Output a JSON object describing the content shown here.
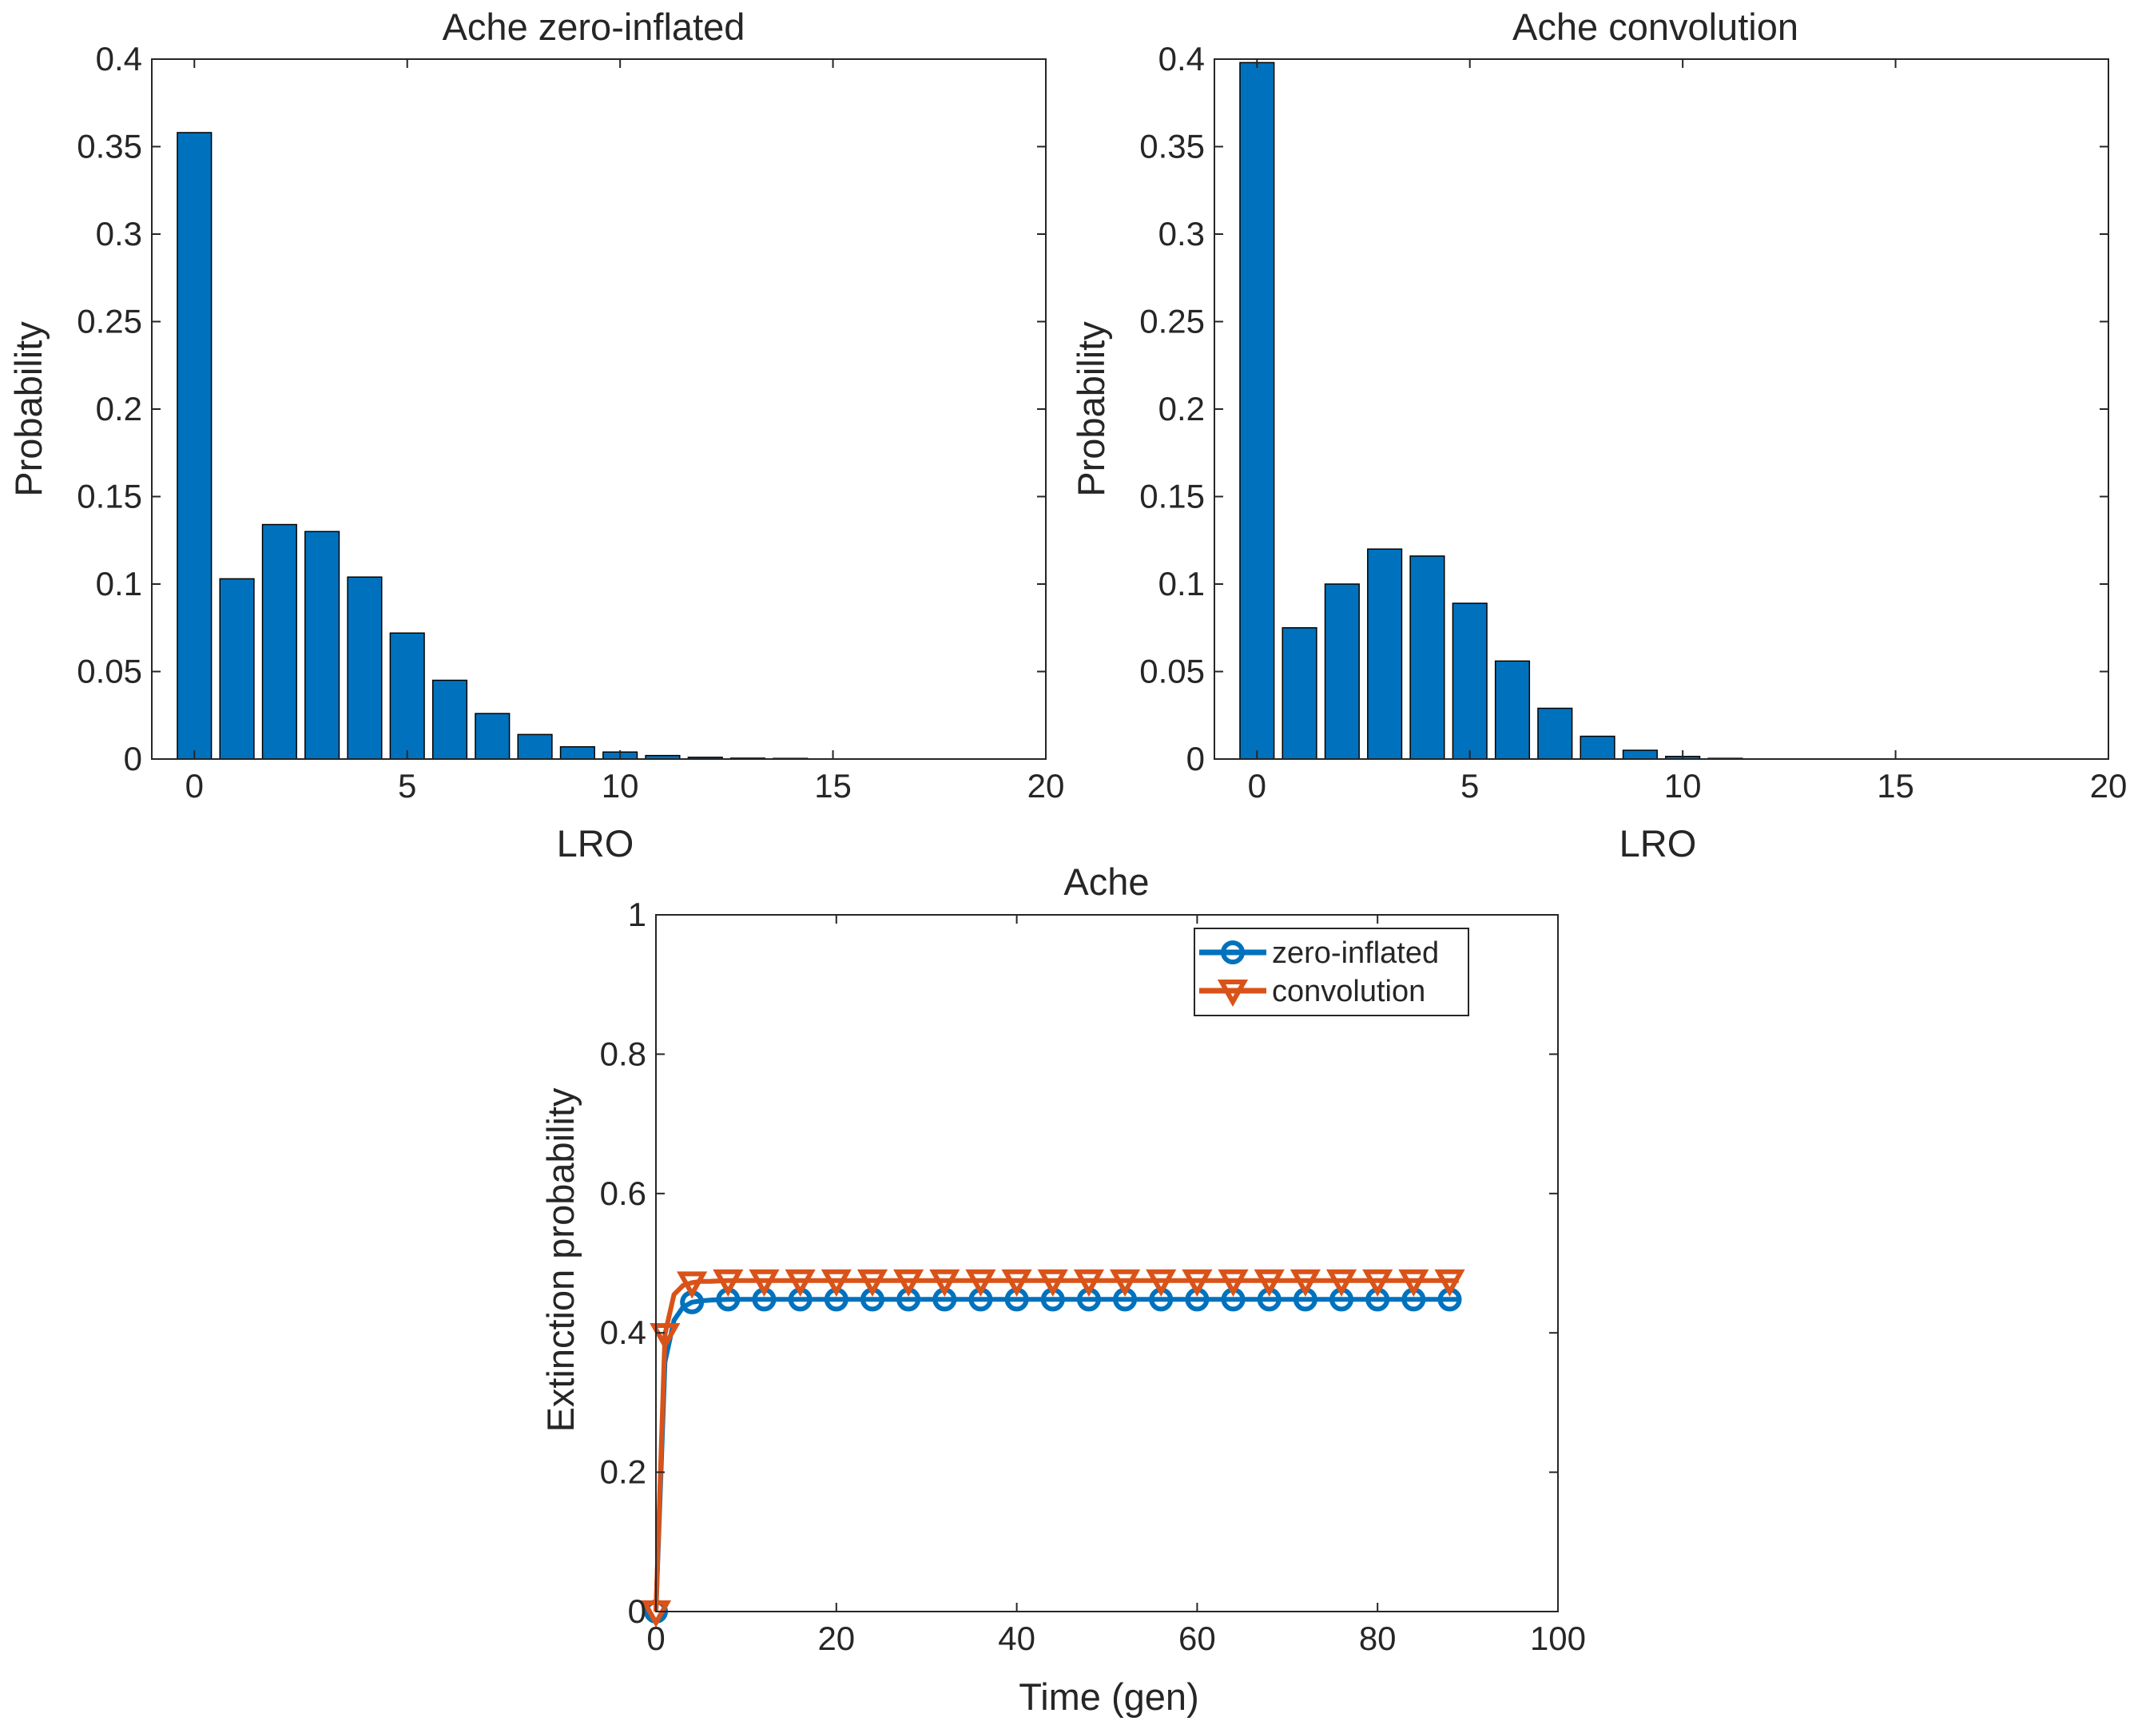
{
  "chart_data": [
    {
      "type": "bar",
      "title": "Ache zero-inflated",
      "xlabel": "LRO",
      "ylabel": "Probability",
      "xlim": [
        -1,
        20
      ],
      "ylim": [
        0,
        0.4
      ],
      "xticks": [
        0,
        5,
        10,
        15,
        20
      ],
      "xtick_labels": [
        "0",
        "5",
        "10",
        "15",
        "20"
      ],
      "yticks": [
        0,
        0.05,
        0.1,
        0.15,
        0.2,
        0.25,
        0.3,
        0.35,
        0.4
      ],
      "ytick_labels": [
        "0",
        "0.05",
        "0.1",
        "0.15",
        "0.2",
        "0.25",
        "0.3",
        "0.35",
        "0.4"
      ],
      "color": "#0072BD",
      "x": [
        0,
        1,
        2,
        3,
        4,
        5,
        6,
        7,
        8,
        9,
        10,
        11,
        12,
        13,
        14
      ],
      "values": [
        0.358,
        0.103,
        0.134,
        0.13,
        0.104,
        0.072,
        0.045,
        0.026,
        0.014,
        0.007,
        0.004,
        0.002,
        0.001,
        0.0005,
        0.0003
      ]
    },
    {
      "type": "bar",
      "title": "Ache convolution",
      "xlabel": "LRO",
      "ylabel": "Probability",
      "xlim": [
        -1,
        20
      ],
      "ylim": [
        0,
        0.4
      ],
      "xticks": [
        0,
        5,
        10,
        15,
        20
      ],
      "xtick_labels": [
        "0",
        "5",
        "10",
        "15",
        "20"
      ],
      "yticks": [
        0,
        0.05,
        0.1,
        0.15,
        0.2,
        0.25,
        0.3,
        0.35,
        0.4
      ],
      "ytick_labels": [
        "0",
        "0.05",
        "0.1",
        "0.15",
        "0.2",
        "0.25",
        "0.3",
        "0.35",
        "0.4"
      ],
      "color": "#0072BD",
      "x": [
        0,
        1,
        2,
        3,
        4,
        5,
        6,
        7,
        8,
        9,
        10,
        11
      ],
      "values": [
        0.398,
        0.075,
        0.1,
        0.12,
        0.116,
        0.089,
        0.056,
        0.029,
        0.013,
        0.005,
        0.0015,
        0.0004
      ]
    },
    {
      "type": "line",
      "title": "Ache",
      "xlabel": "Time (gen)",
      "ylabel": "Extinction probability",
      "xlim": [
        0,
        100
      ],
      "ylim": [
        0,
        1
      ],
      "xticks": [
        0,
        20,
        40,
        60,
        80,
        100
      ],
      "xtick_labels": [
        "0",
        "20",
        "40",
        "60",
        "80",
        "100"
      ],
      "yticks": [
        0,
        0.2,
        0.4,
        0.6,
        0.8,
        1
      ],
      "ytick_labels": [
        "0",
        "0.2",
        "0.4",
        "0.6",
        "0.8",
        "1"
      ],
      "legend_position": "top-right",
      "series": [
        {
          "name": "zero-inflated",
          "color": "#0072BD",
          "marker": "circle",
          "curve_x": [
            0,
            1,
            2,
            3,
            4,
            5,
            6,
            8,
            89
          ],
          "curve_y": [
            0,
            0.358,
            0.418,
            0.437,
            0.444,
            0.446,
            0.447,
            0.448,
            0.448
          ],
          "marker_x": [
            0,
            4,
            8,
            12,
            16,
            20,
            24,
            28,
            32,
            36,
            40,
            44,
            48,
            52,
            56,
            60,
            64,
            68,
            72,
            76,
            80,
            84,
            88
          ],
          "marker_y": [
            0,
            0.444,
            0.448,
            0.448,
            0.448,
            0.448,
            0.448,
            0.448,
            0.448,
            0.448,
            0.448,
            0.448,
            0.448,
            0.448,
            0.448,
            0.448,
            0.448,
            0.448,
            0.448,
            0.448,
            0.448,
            0.448,
            0.448
          ]
        },
        {
          "name": "convolution",
          "color": "#D95319",
          "marker": "triangle-down",
          "curve_x": [
            0,
            1,
            2,
            3,
            4,
            5,
            6,
            8,
            89
          ],
          "curve_y": [
            0,
            0.398,
            0.455,
            0.468,
            0.472,
            0.474,
            0.474,
            0.475,
            0.475
          ],
          "marker_x": [
            0,
            1,
            4,
            8,
            12,
            16,
            20,
            24,
            28,
            32,
            36,
            40,
            44,
            48,
            52,
            56,
            60,
            64,
            68,
            72,
            76,
            80,
            84,
            88
          ],
          "marker_y": [
            0,
            0.398,
            0.472,
            0.475,
            0.475,
            0.475,
            0.475,
            0.475,
            0.475,
            0.475,
            0.475,
            0.475,
            0.475,
            0.475,
            0.475,
            0.475,
            0.475,
            0.475,
            0.475,
            0.475,
            0.475,
            0.475,
            0.475,
            0.475
          ]
        }
      ]
    }
  ]
}
